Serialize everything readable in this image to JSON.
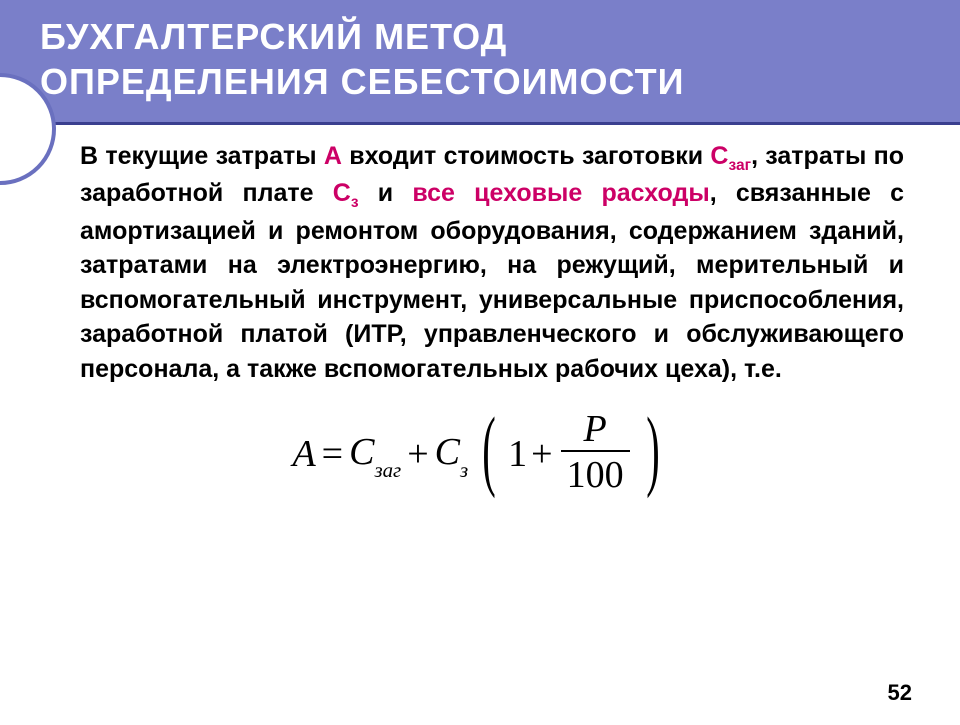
{
  "colors": {
    "header_bg": "#7a7fc9",
    "header_underline": "#3a3f8f",
    "arc_border": "#6a70bf",
    "accent": "#cc0066",
    "text": "#000000",
    "background": "#ffffff"
  },
  "fonts": {
    "body_family": "Arial",
    "formula_family": "Times New Roman",
    "title_size_pt": 36,
    "body_size_pt": 25,
    "formula_size_pt": 38
  },
  "title": {
    "line1": "БУХГАЛТЕРСКИЙ МЕТОД",
    "line2": "ОПРЕДЕЛЕНИЯ СЕБЕСТОИМОСТИ"
  },
  "body": {
    "p1_a": "В текущие затраты ",
    "A": "А",
    "p1_b": " входит стоимость заготовки ",
    "Czag": "С",
    "Czag_sub": "заг",
    "p1_c": ", затраты по заработной плате ",
    "Cz": "С",
    "Cz_sub": "з",
    "p1_d": " и ",
    "accent": "все цеховые расходы",
    "p1_e": ", связанные с амортизацией и ремонтом оборудования, содержанием зданий, затратами на электроэнергию, на режущий, мерительный и вспомогательный инструмент, универсальные приспособления, заработной платой (ИТР, управленческого и обслуживающего персонала, а также вспомогательных рабочих цеха), т.е."
  },
  "formula": {
    "A": "A",
    "eq": " = ",
    "C": "C",
    "sub_zag": "заг",
    "plus": " + ",
    "sub_z": "з",
    "one": "1",
    "inner_plus": " + ",
    "P": "P",
    "den": "100"
  },
  "page": "52"
}
